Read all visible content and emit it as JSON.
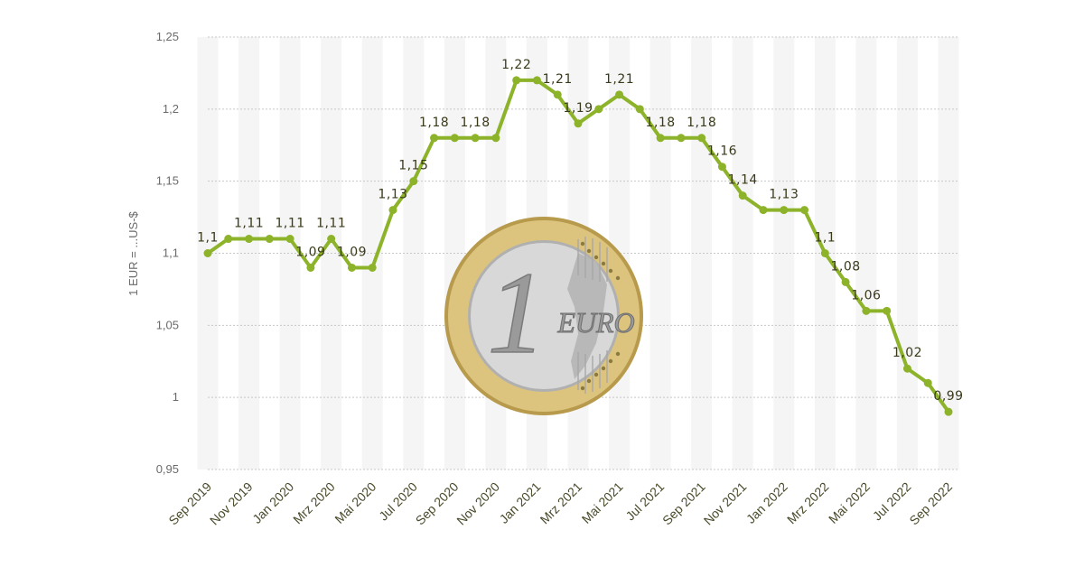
{
  "chart_data": {
    "type": "line",
    "ylabel": "1 EUR = ...US-$",
    "ylim": [
      0.95,
      1.25
    ],
    "yticks": [
      0.95,
      1,
      1.05,
      1.1,
      1.15,
      1.2,
      1.25
    ],
    "ytick_labels": [
      "0,95",
      "1",
      "1,05",
      "1,1",
      "1,15",
      "1,2",
      "1,25"
    ],
    "grid": true,
    "series_color": "#8db32a",
    "x": [
      "Sep 2019",
      "Okt 2019",
      "Nov 2019",
      "Dez 2019",
      "Jan 2020",
      "Feb 2020",
      "Mrz 2020",
      "Apr 2020",
      "Mai 2020",
      "Jun 2020",
      "Jul 2020",
      "Aug 2020",
      "Sep 2020",
      "Okt 2020",
      "Nov 2020",
      "Dez 2020",
      "Jan 2021",
      "Feb 2021",
      "Mrz 2021",
      "Apr 2021",
      "Mai 2021",
      "Jun 2021",
      "Jul 2021",
      "Aug 2021",
      "Sep 2021",
      "Okt 2021",
      "Nov 2021",
      "Dez 2021",
      "Jan 2022",
      "Feb 2022",
      "Mrz 2022",
      "Apr 2022",
      "Mai 2022",
      "Jun 2022",
      "Jul 2022",
      "Aug 2022",
      "Sep 2022"
    ],
    "xtick_labels": [
      "Sep 2019",
      "Nov 2019",
      "Jan 2020",
      "Mrz 2020",
      "Mai 2020",
      "Jul 2020",
      "Sep 2020",
      "Nov 2020",
      "Jan 2021",
      "Mrz 2021",
      "Mai 2021",
      "Jul 2021",
      "Sep 2021",
      "Nov 2021",
      "Jan 2022",
      "Mrz 2022",
      "Mai 2022",
      "Jul 2022",
      "Sep 2022"
    ],
    "values": [
      1.1,
      1.11,
      1.11,
      1.11,
      1.11,
      1.09,
      1.11,
      1.09,
      1.09,
      1.13,
      1.15,
      1.18,
      1.18,
      1.18,
      1.18,
      1.22,
      1.22,
      1.21,
      1.19,
      1.2,
      1.21,
      1.2,
      1.18,
      1.18,
      1.18,
      1.16,
      1.14,
      1.13,
      1.13,
      1.13,
      1.1,
      1.08,
      1.06,
      1.06,
      1.02,
      1.01,
      0.99
    ],
    "data_labels": [
      {
        "i": 0,
        "text": "1,1"
      },
      {
        "i": 2,
        "text": "1,11"
      },
      {
        "i": 4,
        "text": "1,11"
      },
      {
        "i": 5,
        "text": "1,09"
      },
      {
        "i": 6,
        "text": "1,11"
      },
      {
        "i": 7,
        "text": "1,09"
      },
      {
        "i": 9,
        "text": "1,13"
      },
      {
        "i": 10,
        "text": "1,15"
      },
      {
        "i": 11,
        "text": "1,18"
      },
      {
        "i": 13,
        "text": "1,18"
      },
      {
        "i": 15,
        "text": "1,22"
      },
      {
        "i": 17,
        "text": "1,21"
      },
      {
        "i": 18,
        "text": "1,19"
      },
      {
        "i": 20,
        "text": "1,21"
      },
      {
        "i": 22,
        "text": "1,18"
      },
      {
        "i": 24,
        "text": "1,18"
      },
      {
        "i": 25,
        "text": "1,16"
      },
      {
        "i": 26,
        "text": "1,14"
      },
      {
        "i": 28,
        "text": "1,13"
      },
      {
        "i": 30,
        "text": "1,1"
      },
      {
        "i": 31,
        "text": "1,08"
      },
      {
        "i": 32,
        "text": "1,06"
      },
      {
        "i": 34,
        "text": "1,02"
      },
      {
        "i": 36,
        "text": "0,99"
      }
    ]
  },
  "coin": {
    "numeral": "1",
    "text": "EURO",
    "outer_color": "#d9bf72",
    "inner_color": "#cfcfcf"
  }
}
